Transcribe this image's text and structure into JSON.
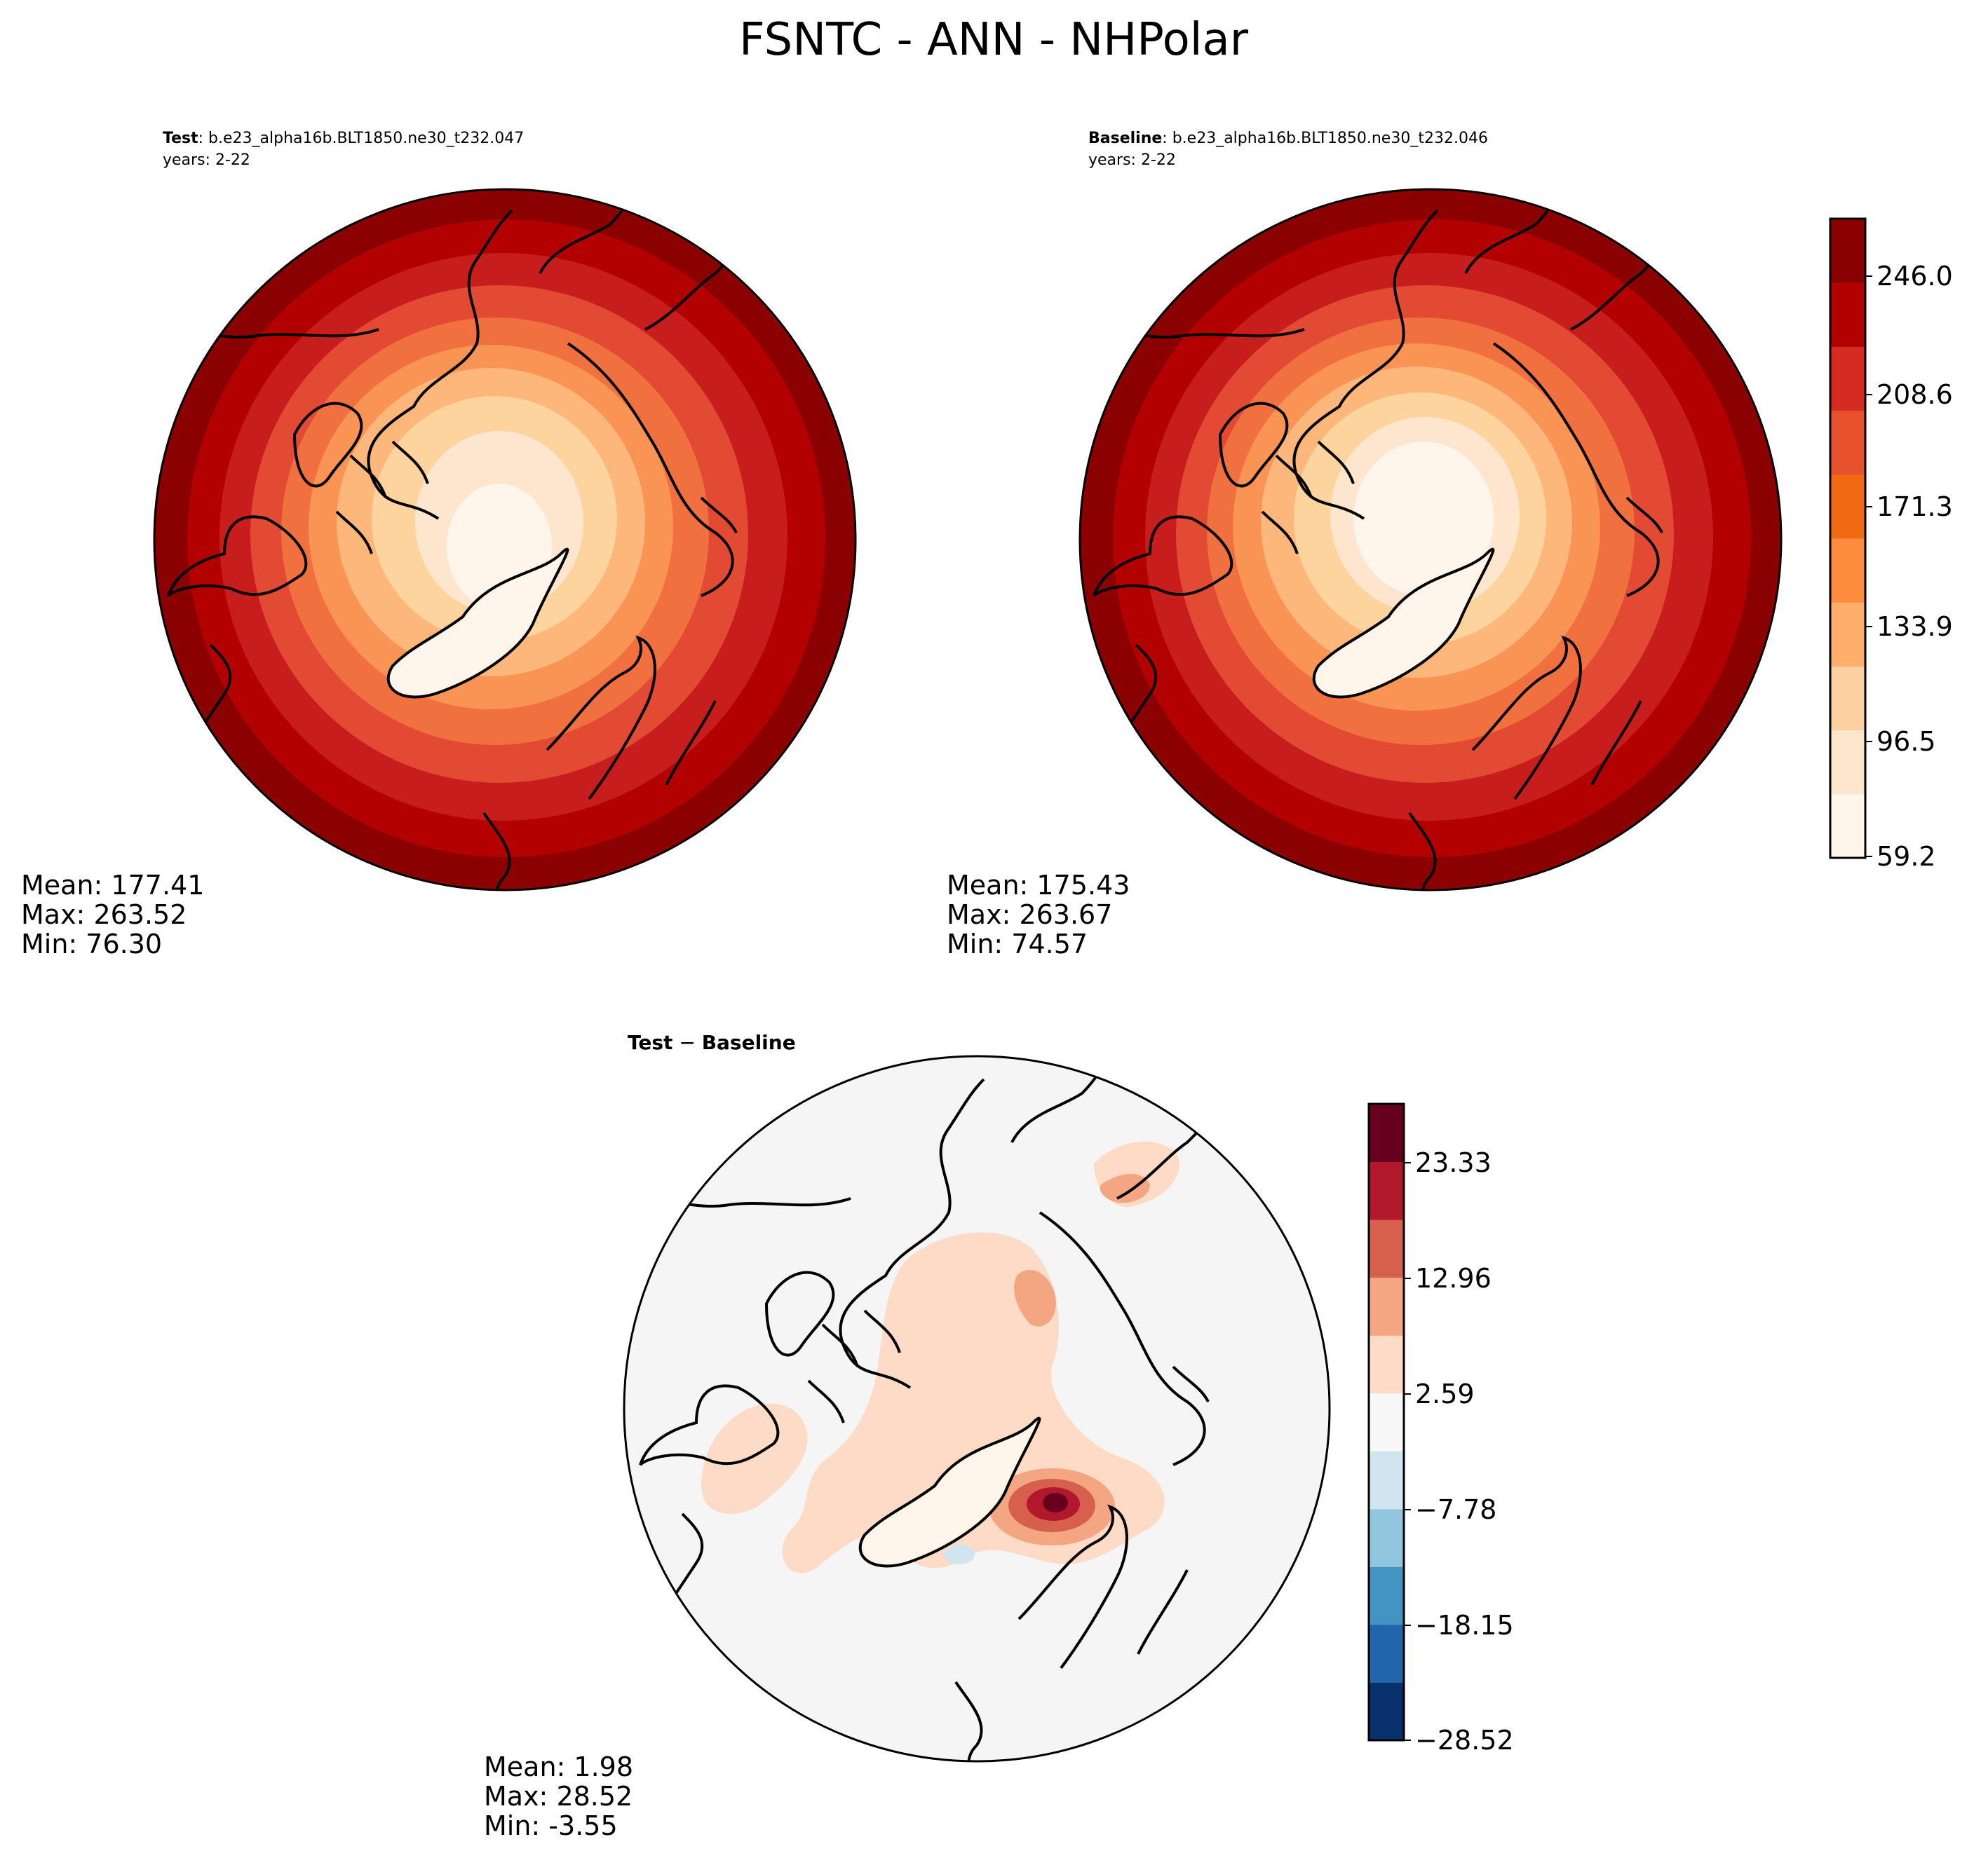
{
  "figure": {
    "title": "FSNTC - ANN - NHPolar"
  },
  "panels": {
    "test": {
      "label_bold": "Test",
      "label_rest": ": b.e23_alpha16b.BLT1850.ne30_t232.047",
      "years": "years: 2-22",
      "stats": {
        "mean": "Mean: 177.41",
        "max": "Max: 263.52",
        "min": "Min: 76.30"
      }
    },
    "baseline": {
      "label_bold": "Baseline",
      "label_rest": ": b.e23_alpha16b.BLT1850.ne30_t232.046",
      "years": "years: 2-22",
      "stats": {
        "mean": "Mean: 175.43",
        "max": "Max: 263.67",
        "min": "Min: 74.57"
      }
    },
    "diff": {
      "label_bold": "Test",
      "label_mid": " − ",
      "label_bold2": "Baseline",
      "stats": {
        "mean": "Mean:  1.98",
        "max": "Max: 28.52",
        "min": "Min: -3.55"
      }
    }
  },
  "colorbars": {
    "main": {
      "ticks": [
        "246.0",
        "208.6",
        "171.3",
        "133.9",
        "96.5",
        "59.2"
      ],
      "colors": [
        "#fff5eb",
        "#fee6ce",
        "#fdd0a2",
        "#fdae6b",
        "#fd8d3c",
        "#f16913",
        "#e6502c",
        "#d42c20",
        "#b30000",
        "#8b0000"
      ]
    },
    "diff": {
      "ticks": [
        "23.33",
        "12.96",
        "2.59",
        "−7.78",
        "−18.15",
        "−28.52"
      ],
      "colors": [
        "#08306b",
        "#2166ac",
        "#4393c3",
        "#92c5de",
        "#d1e5f0",
        "#f7f7f7",
        "#fddbc7",
        "#f4a582",
        "#d6604d",
        "#b2182b",
        "#67001f"
      ]
    }
  },
  "map_colors": {
    "ring_outer": "#8b0000",
    "ring_2": "#b30000",
    "ring_3": "#c81d1d",
    "ring_4": "#e34a33",
    "ring_5": "#f07040",
    "ring_6": "#f99455",
    "ring_7": "#fdb77a",
    "ring_8": "#fdd49e",
    "ring_9": "#fee6ce",
    "ring_center": "#fff5eb",
    "diff_background": "#f5f5f5",
    "diff_pos_light": "#fddbc7",
    "diff_pos_mid": "#f4a582",
    "diff_pos_strong": "#d6604d",
    "diff_pos_max": "#b2182b",
    "diff_peak": "#67001f",
    "diff_neg_light": "#d1e5f0",
    "coastline": "#000000"
  }
}
